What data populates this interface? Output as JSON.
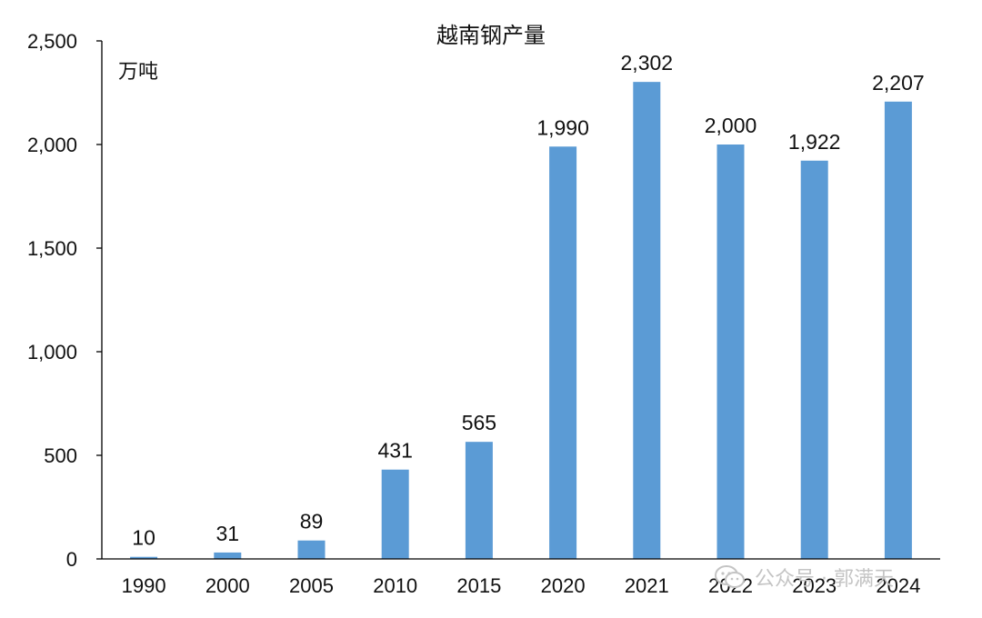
{
  "chart_data": {
    "type": "bar",
    "title": "越南钢产量",
    "unit_label": "万吨",
    "categories": [
      "1990",
      "2000",
      "2005",
      "2010",
      "2015",
      "2020",
      "2021",
      "2022",
      "2023",
      "2024"
    ],
    "values": [
      10,
      31,
      89,
      431,
      565,
      1990,
      2302,
      2000,
      1922,
      2207
    ],
    "data_labels": [
      "10",
      "31",
      "89",
      "431",
      "565",
      "1,990",
      "2,302",
      "2,000",
      "1,922",
      "2,207"
    ],
    "ylim": [
      0,
      2500
    ],
    "yticks": [
      0,
      500,
      1000,
      1500,
      2000,
      2500
    ],
    "ytick_labels": [
      "0",
      "500",
      "1,000",
      "1,500",
      "2,000",
      "2,500"
    ],
    "xlabel": "",
    "ylabel": "",
    "grid": false,
    "legend": "none",
    "bar_color": "#5b9bd5"
  },
  "watermark": {
    "text": "公众号 · 郭满天",
    "icon": "wechat-icon"
  }
}
